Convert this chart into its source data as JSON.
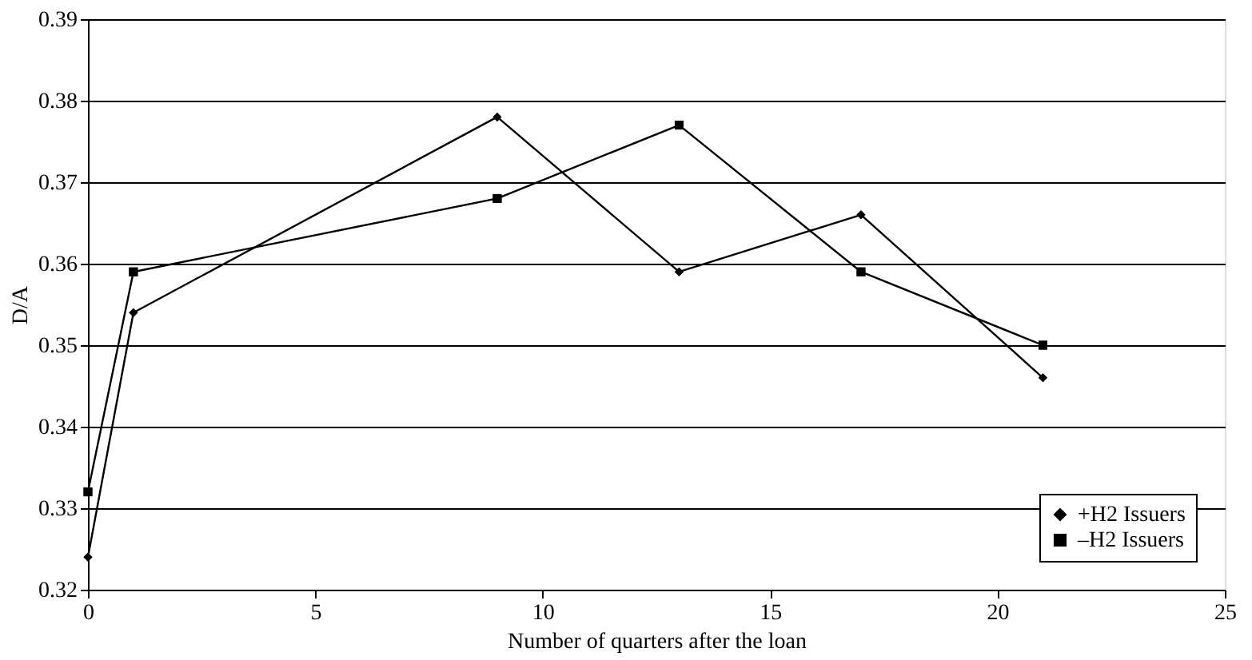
{
  "chart_data": {
    "type": "line",
    "xlabel": "Number of quarters after the loan",
    "ylabel": "D/A",
    "x": [
      0,
      1,
      9,
      13,
      17,
      21
    ],
    "series": [
      {
        "name": "+H2 Issuers",
        "color": "#000000",
        "marker": "diamond",
        "values": [
          0.324,
          0.354,
          0.378,
          0.359,
          0.366,
          0.346
        ]
      },
      {
        "name": "–H2 Issuers",
        "color": "#000000",
        "marker": "square",
        "values": [
          0.332,
          0.359,
          0.368,
          0.377,
          0.359,
          0.35
        ]
      }
    ],
    "xlim": [
      0,
      25
    ],
    "xticks": [
      0,
      5,
      10,
      15,
      20,
      25
    ],
    "ylim": [
      0.32,
      0.39
    ],
    "yticks": [
      0.32,
      0.33,
      0.34,
      0.35,
      0.36,
      0.37,
      0.38,
      0.39
    ],
    "grid": "y",
    "legend": "bottom right",
    "line_style": "solid"
  }
}
